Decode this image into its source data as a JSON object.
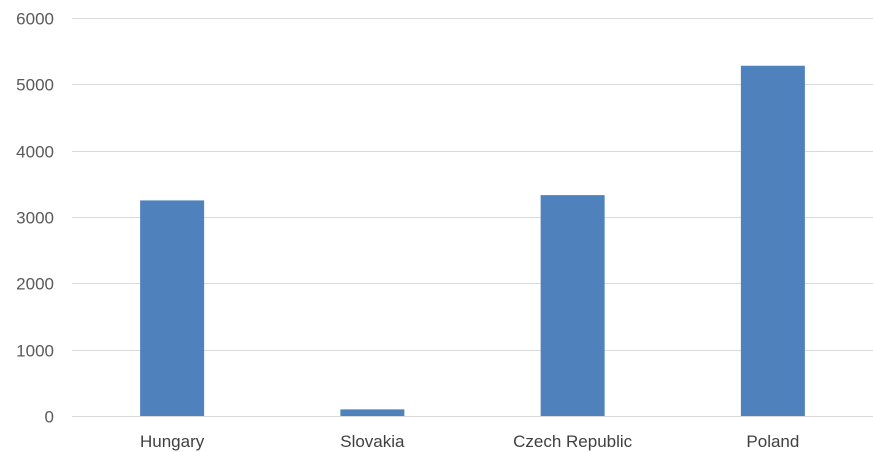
{
  "chart_data": {
    "type": "bar",
    "title": "",
    "xlabel": "",
    "ylabel": "",
    "categories": [
      "Hungary",
      "Slovakia",
      "Czech Republic",
      "Poland"
    ],
    "values": [
      3250,
      100,
      3330,
      5280
    ],
    "ylim": [
      0,
      6000
    ],
    "yticks": [
      0,
      1000,
      2000,
      3000,
      4000,
      5000,
      6000
    ],
    "ytick_labels": [
      "0",
      "1000",
      "2000",
      "3000",
      "4000",
      "5000",
      "6000"
    ],
    "grid": true,
    "legend": "none",
    "bar_color": "#4f81bd",
    "grid_color": "#d9d9d9"
  }
}
